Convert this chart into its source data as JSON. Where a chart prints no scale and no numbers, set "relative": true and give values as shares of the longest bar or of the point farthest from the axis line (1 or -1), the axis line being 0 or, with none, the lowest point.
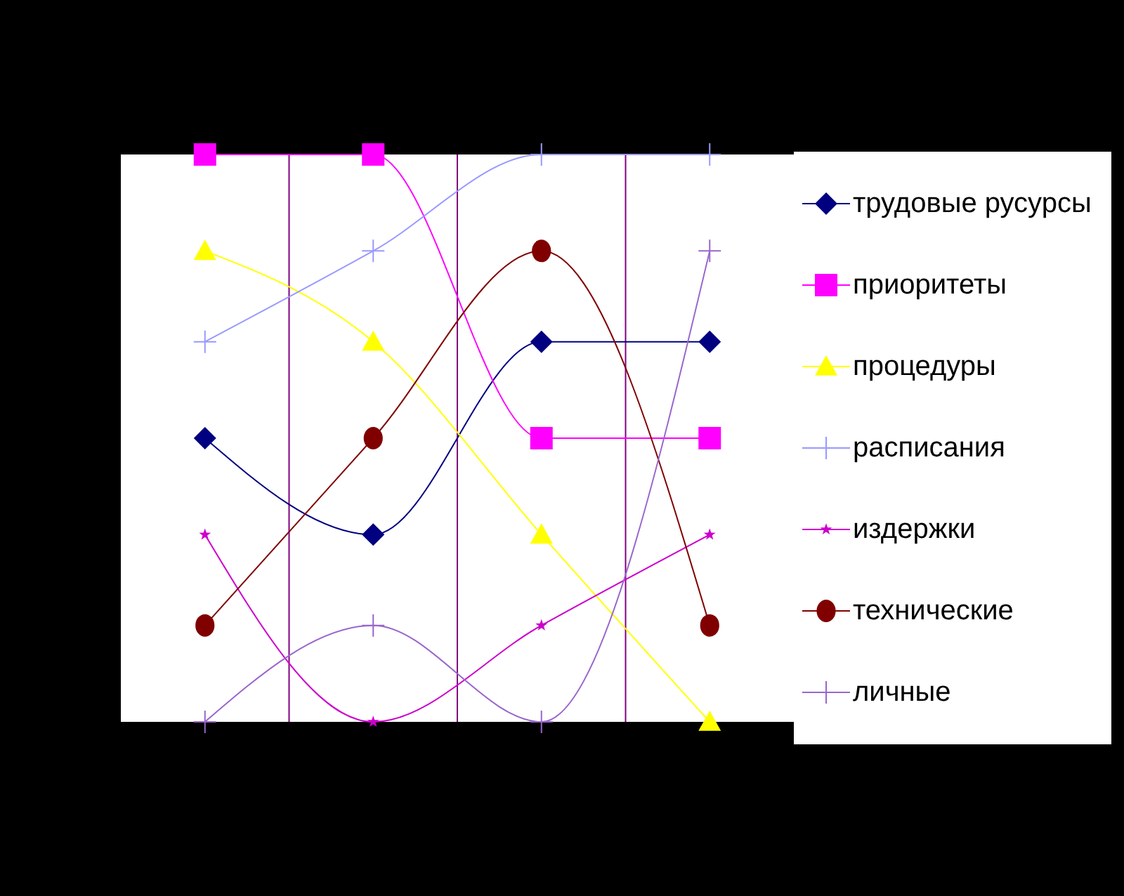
{
  "chart_data": {
    "type": "line",
    "relative": true,
    "categories": [
      null,
      null,
      null,
      null
    ],
    "grid": "x",
    "legend": "right",
    "line_style": "solid",
    "series": [
      {
        "name": "трудовые русурсы",
        "color": "#000080",
        "marker": "diamond",
        "values": [
          0.5,
          0.33,
          0.67,
          0.67
        ]
      },
      {
        "name": "приоритеты",
        "color": "#ff00ff",
        "marker": "square",
        "values": [
          1,
          1,
          0.5,
          0.5
        ]
      },
      {
        "name": "процедуры",
        "color": "#ffff00",
        "marker": "triangle",
        "values": [
          0.83,
          0.67,
          0.33,
          0
        ]
      },
      {
        "name": "расписания",
        "color": "#9999ff",
        "marker": "cross",
        "values": [
          0.67,
          0.83,
          1,
          1
        ]
      },
      {
        "name": "издержки",
        "color": "#cc00cc",
        "marker": "star",
        "values": [
          0.33,
          0,
          0.17,
          0.33
        ]
      },
      {
        "name": "технические",
        "color": "#800000",
        "marker": "circle",
        "values": [
          0.17,
          0.5,
          0.83,
          0.17
        ]
      },
      {
        "name": "личные",
        "color": "#9966cc",
        "marker": "cross",
        "values": [
          0,
          0.17,
          0,
          0.83
        ]
      }
    ]
  }
}
